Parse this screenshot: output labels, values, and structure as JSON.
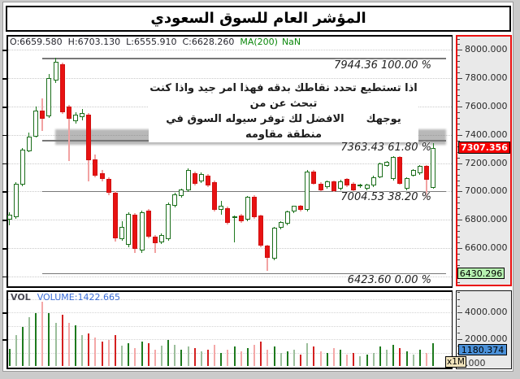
{
  "window": {
    "title": "المؤشر العام للسوق السعودي"
  },
  "price_pane": {
    "ohlc": {
      "o": "O:6659.580",
      "h": "H:6703.130",
      "l": "L:6555.910",
      "c": "C:6628.260",
      "ma": "MA(200)",
      "ma_value": "NaN"
    },
    "annotation": {
      "line1": "اذا تستطيع تحدد نقاطك بدقه فهذا امر جيد واذا كنت تبحث عن من",
      "line2_right": "يوجهك",
      "line2_left": "الافضل لك توفر سيوله السوق في منطقة مقاومه"
    },
    "fib_levels": [
      {
        "label": "7944.36 100.00 %",
        "price": 7944.36,
        "pct": 100.0
      },
      {
        "label": "7363.43 61.80 %",
        "price": 7363.43,
        "pct": 61.8
      },
      {
        "label": "7004.53 38.20 %",
        "price": 7004.53,
        "pct": 38.2
      },
      {
        "label": "6423.60 0.00 %",
        "price": 6423.6,
        "pct": 0.0
      }
    ]
  },
  "price_axis": {
    "ticks": [
      {
        "label": "8000.000",
        "value": 8000
      },
      {
        "label": "7800.000",
        "value": 7800
      },
      {
        "label": "7600.000",
        "value": 7600
      },
      {
        "label": "7400.000",
        "value": 7400
      },
      {
        "label": "7200.000",
        "value": 7200
      },
      {
        "label": "7000.000",
        "value": 7000
      },
      {
        "label": "6800.000",
        "value": 6800
      },
      {
        "label": "6600.000",
        "value": 6600
      }
    ],
    "last_price_badge": "7307.356",
    "last_price_value": 7307.356,
    "low_badge": "6430.296",
    "low_badge_value": 6430.296
  },
  "volume_pane": {
    "label": "VOL",
    "volume_label": "VOLUME:1422.665"
  },
  "volume_axis": {
    "ticks": [
      {
        "label": "4000.000",
        "value": 4000
      },
      {
        "label": "2000.000",
        "value": 2000
      }
    ],
    "badge": "1180.374",
    "badge_value": 1180.374,
    "zero_label": "0.000",
    "multiplier": "x1M"
  },
  "colors": {
    "up_candle_border": "#1b6e1b",
    "up_candle_fill": "#ffffff",
    "down_candle_fill": "#e81212",
    "down_candle_border": "#d01010",
    "up_wick": "#1e7a1e",
    "down_wick": "#f2a2a2",
    "vol_dark_green": "#1d7a1d",
    "vol_light_green": "#9cbf9c",
    "vol_dark_red": "#d42020",
    "vol_light_red": "#f4a8a8",
    "axis_border_price": "#ea1010",
    "badge_red_bg": "#f70000",
    "badge_green_bg": "#b6f0b0",
    "badge_blue_bg": "#4a90d8",
    "fib_line": "#787878",
    "zone_gray": "#767676"
  },
  "chart_data": {
    "type": "candlestick",
    "title": "المؤشر العام للسوق السعودي",
    "price_axis_range": [
      6313,
      8106
    ],
    "volume_axis_range": [
      0,
      5700
    ],
    "grid": "dotted-horizontal",
    "legend_position": "none",
    "resistance_zone": {
      "from": 7438,
      "to": 7330
    },
    "fib": [
      {
        "price": 7944.36,
        "pct": 100.0
      },
      {
        "price": 7363.43,
        "pct": 61.8
      },
      {
        "price": 7004.53,
        "pct": 38.2
      },
      {
        "price": 6423.6,
        "pct": 0.0
      }
    ],
    "last_price": 7307.356,
    "candles": [
      [
        6800,
        6852,
        6762,
        6835,
        1270,
        "g"
      ],
      [
        6817,
        7065,
        6806,
        7057,
        2300,
        "G"
      ],
      [
        7046,
        7308,
        7038,
        7297,
        2930,
        "g"
      ],
      [
        7286,
        7418,
        7278,
        7389,
        3630,
        "G"
      ],
      [
        7389,
        7602,
        7380,
        7571,
        3940,
        "g"
      ],
      [
        7571,
        7658,
        7428,
        7514,
        4790,
        "R"
      ],
      [
        7531,
        7832,
        7520,
        7800,
        3940,
        "g"
      ],
      [
        7783,
        7946,
        7768,
        7914,
        3210,
        "G"
      ],
      [
        7897,
        7912,
        7548,
        7560,
        3800,
        "r"
      ],
      [
        7600,
        7612,
        7217,
        7514,
        3210,
        "R"
      ],
      [
        7497,
        7562,
        7482,
        7543,
        3030,
        "g"
      ],
      [
        7526,
        7582,
        7502,
        7554,
        2300,
        "G"
      ],
      [
        7543,
        7552,
        7069,
        7223,
        2420,
        "r"
      ],
      [
        7229,
        7262,
        7098,
        7114,
        2120,
        "R"
      ],
      [
        7131,
        7152,
        7072,
        7086,
        1820,
        "r"
      ],
      [
        7086,
        7102,
        6972,
        6989,
        1940,
        "R"
      ],
      [
        6989,
        7002,
        6648,
        6669,
        2300,
        "r"
      ],
      [
        6664,
        6792,
        6650,
        6750,
        1520,
        "G"
      ],
      [
        6623,
        6856,
        6608,
        6842,
        1700,
        "g"
      ],
      [
        6836,
        6846,
        6563,
        6594,
        1330,
        "R"
      ],
      [
        6582,
        6862,
        6565,
        6853,
        1820,
        "g"
      ],
      [
        6865,
        6876,
        6668,
        6681,
        1700,
        "r"
      ],
      [
        6681,
        6692,
        6566,
        6635,
        1210,
        "R"
      ],
      [
        6641,
        6702,
        6628,
        6693,
        1520,
        "G"
      ],
      [
        6664,
        6922,
        6654,
        6911,
        1940,
        "g"
      ],
      [
        6899,
        6992,
        6888,
        6980,
        1580,
        "G"
      ],
      [
        6968,
        7022,
        6958,
        7014,
        1210,
        "g"
      ],
      [
        7008,
        7162,
        6998,
        7152,
        1460,
        "G"
      ],
      [
        7129,
        7142,
        7042,
        7055,
        1330,
        "r"
      ],
      [
        7072,
        7132,
        7058,
        7123,
        1090,
        "G"
      ],
      [
        7112,
        7122,
        7032,
        7043,
        1210,
        "r"
      ],
      [
        7066,
        7076,
        6858,
        6871,
        1580,
        "R"
      ],
      [
        6871,
        6932,
        6838,
        6900,
        970,
        "g"
      ],
      [
        6882,
        6892,
        6768,
        6779,
        1210,
        "R"
      ],
      [
        6811,
        6832,
        6640,
        6823,
        1460,
        "g"
      ],
      [
        6829,
        6842,
        6778,
        6789,
        1090,
        "R"
      ],
      [
        6800,
        6966,
        6788,
        6960,
        1330,
        "g"
      ],
      [
        6960,
        6972,
        6808,
        6817,
        1580,
        "R"
      ],
      [
        6829,
        6836,
        6608,
        6617,
        1820,
        "r"
      ],
      [
        6617,
        6626,
        6438,
        6531,
        1210,
        "R"
      ],
      [
        6526,
        6752,
        6514,
        6743,
        1460,
        "g"
      ],
      [
        6743,
        6792,
        6734,
        6783,
        970,
        "G"
      ],
      [
        6771,
        6862,
        6760,
        6857,
        1090,
        "g"
      ],
      [
        6857,
        6902,
        6848,
        6897,
        1210,
        "G"
      ],
      [
        6897,
        6906,
        6858,
        6869,
        850,
        "r"
      ],
      [
        6869,
        7152,
        6860,
        7143,
        1700,
        "G"
      ],
      [
        7143,
        7152,
        7048,
        7057,
        1460,
        "r"
      ],
      [
        7057,
        7066,
        7002,
        7011,
        1090,
        "R"
      ],
      [
        7029,
        7076,
        7018,
        7069,
        970,
        "g"
      ],
      [
        7069,
        7076,
        6994,
        7000,
        1330,
        "R"
      ],
      [
        7017,
        7082,
        7008,
        7074,
        1210,
        "g"
      ],
      [
        7086,
        7094,
        7032,
        7040,
        850,
        "R"
      ],
      [
        7057,
        7064,
        7004,
        7011,
        970,
        "r"
      ],
      [
        7040,
        7052,
        7028,
        7046,
        730,
        "G"
      ],
      [
        7017,
        7052,
        7008,
        7046,
        850,
        "g"
      ],
      [
        7040,
        7112,
        7034,
        7103,
        970,
        "G"
      ],
      [
        7103,
        7206,
        7094,
        7200,
        1460,
        "g"
      ],
      [
        7183,
        7216,
        7174,
        7211,
        1210,
        "G"
      ],
      [
        7086,
        7252,
        7078,
        7246,
        1580,
        "g"
      ],
      [
        7246,
        7252,
        7048,
        7057,
        1330,
        "r"
      ],
      [
        7017,
        7102,
        7008,
        7097,
        1090,
        "g"
      ],
      [
        7112,
        7158,
        7104,
        7153,
        850,
        "G"
      ],
      [
        7129,
        7186,
        7120,
        7181,
        1210,
        "g"
      ],
      [
        7181,
        7188,
        6957,
        7083,
        970,
        "R"
      ],
      [
        7026,
        7341,
        7018,
        7307,
        1700,
        "g"
      ]
    ]
  }
}
